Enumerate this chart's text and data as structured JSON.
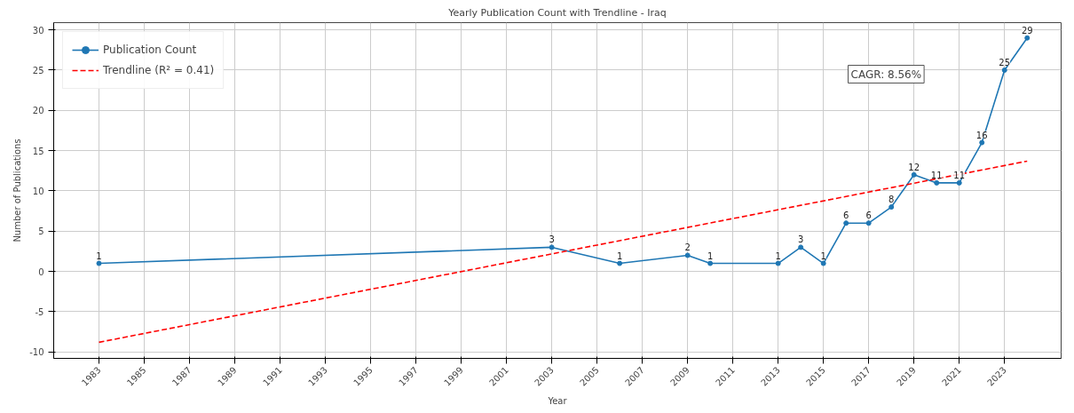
{
  "chart_data": {
    "type": "line",
    "title": "Yearly Publication Count with Trendline - Iraq",
    "xlabel": "Year",
    "ylabel": "Number of Publications",
    "x": [
      1983,
      2003,
      2006,
      2009,
      2010,
      2013,
      2014,
      2015,
      2016,
      2017,
      2018,
      2019,
      2020,
      2021,
      2022,
      2023,
      2024
    ],
    "series": [
      {
        "name": "Publication Count",
        "color": "#1f77b4",
        "marker": "circle",
        "line_style": "solid",
        "data_labels": true,
        "values": [
          1,
          3,
          1,
          2,
          1,
          1,
          3,
          1,
          6,
          6,
          8,
          12,
          11,
          11,
          16,
          25,
          29
        ]
      },
      {
        "name": "Trendline (R² = 0.41)",
        "color": "#ff0000",
        "marker": "none",
        "line_style": "dashed",
        "x": [
          1983,
          2024
        ],
        "values": [
          -8.8,
          13.7
        ]
      }
    ],
    "annotations": [
      "CAGR: 8.56%"
    ],
    "xlim": [
      1981,
      2025.5
    ],
    "xticks": [
      1983,
      1985,
      1987,
      1989,
      1991,
      1993,
      1995,
      1997,
      1999,
      2001,
      2003,
      2005,
      2007,
      2009,
      2011,
      2013,
      2015,
      2017,
      2019,
      2021,
      2023
    ],
    "ylim": [
      -10.8,
      30.9
    ],
    "yticks": [
      -10,
      -5,
      0,
      5,
      10,
      15,
      20,
      25,
      30
    ],
    "grid": true,
    "legend": "top left"
  }
}
